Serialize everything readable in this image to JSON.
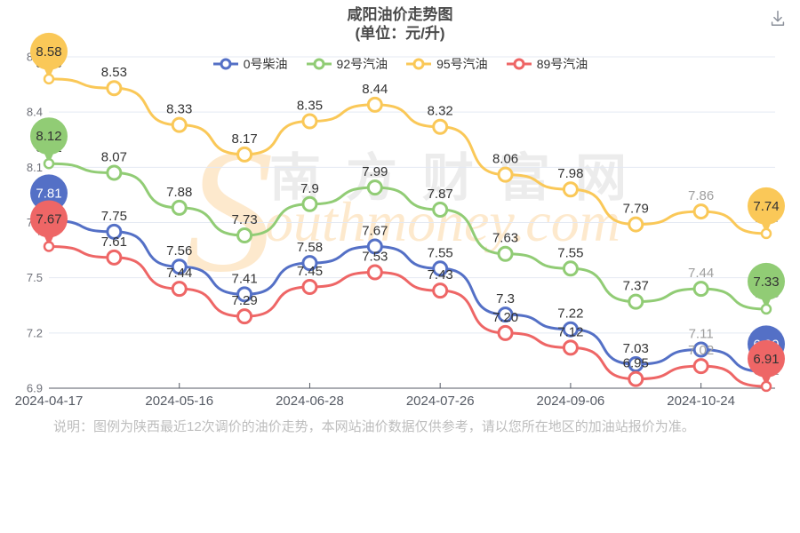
{
  "header": {
    "title": "咸阳油价走势图",
    "subtitle": "(单位：元/升)"
  },
  "toolbar": {
    "download_icon": "download-to-tray"
  },
  "chart_data": {
    "type": "line",
    "title": "咸阳油价走势图",
    "subtitle": "(单位：元/升)",
    "unit": "元/升",
    "categories": [
      "2024-04-17",
      "",
      "2024-05-16",
      "",
      "2024-06-28",
      "",
      "2024-07-26",
      "",
      "2024-09-06",
      "",
      "2024-10-24",
      ""
    ],
    "x_label_interval": 2,
    "series": [
      {
        "name": "0号柴油",
        "color": "#5470c6",
        "pin_text_color": "#ffffff",
        "values": [
          "7.81",
          "7.75",
          "7.56",
          "7.41",
          "7.58",
          "7.67",
          "7.55",
          "7.3",
          "7.22",
          "7.03",
          "7.11",
          "6.99"
        ]
      },
      {
        "name": "92号汽油",
        "color": "#91cc75",
        "pin_text_color": "#333333",
        "values": [
          "8.12",
          "8.07",
          "7.88",
          "7.73",
          "7.9",
          "7.99",
          "7.87",
          "7.63",
          "7.55",
          "7.37",
          "7.44",
          "7.33"
        ]
      },
      {
        "name": "95号汽油",
        "color": "#fac858",
        "pin_text_color": "#333333",
        "values": [
          "8.58",
          "8.53",
          "8.33",
          "8.17",
          "8.35",
          "8.44",
          "8.32",
          "8.06",
          "7.98",
          "7.79",
          "7.86",
          "7.74"
        ]
      },
      {
        "name": "89号汽油",
        "color": "#ee6666",
        "pin_text_color": "#333333",
        "values": [
          "7.67",
          "7.61",
          "7.44",
          "7.29",
          "7.45",
          "7.53",
          "7.43",
          "7.20",
          "7.12",
          "6.95",
          "7.02",
          "6.91"
        ]
      }
    ],
    "ylim": [
      6.9,
      8.7
    ],
    "y_ticks": [
      "6.9",
      "7.2",
      "7.5",
      "7.8",
      "8.1",
      "8.4",
      "8.7"
    ],
    "grid": "horizontal-only",
    "legend_position": "top",
    "marker": "hollow-circle",
    "pin_indices": [
      0,
      11
    ],
    "muted_label_indices": [
      10,
      11
    ]
  },
  "styles": {
    "label_color": "#333333",
    "muted_label_color": "#9e9e9e",
    "y_axis_label_color": "#6e7079",
    "x_axis_label_color": "#555a64",
    "grid_color": "#e4e9f3",
    "axis_line_color": "#555a64",
    "marker_fill": "#ffffff"
  },
  "watermark": {
    "text_cn": "南方财富网",
    "initial": "S",
    "text_en": "outhmoney.com"
  },
  "note": "说明：图例为陕西最近12次调价的油价走势，本网站油价数据仅供参考，请以您所在地区的加油站报价为准。"
}
